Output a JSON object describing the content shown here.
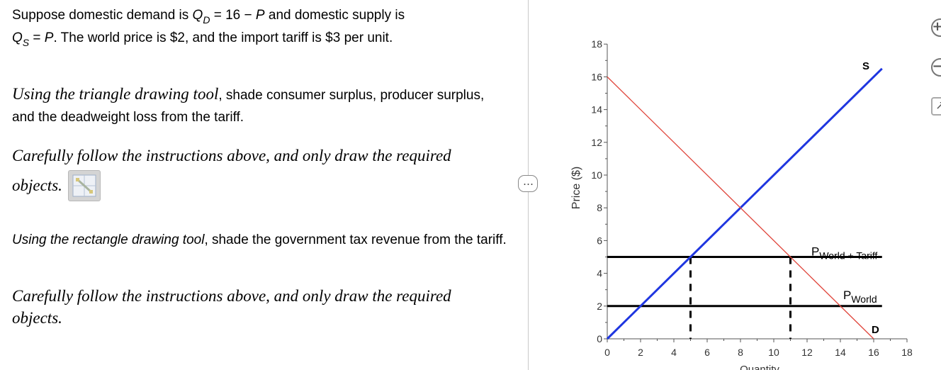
{
  "question": {
    "line1_pre": "Suppose domestic demand is ",
    "qd_q": "Q",
    "qd_sub": "D",
    "line1_mid": " = 16  −  ",
    "line1_p": "P",
    "line1_post": " and domestic supply is",
    "qs_q": "Q",
    "qs_sub": "S",
    "line2_eq": " =  ",
    "line2_p": "P",
    "line2_post": ". The world price is $2, and the import tariff is $3 per unit."
  },
  "instruction1": {
    "italic": "Using the triangle drawing tool",
    "rest": ", shade consumer surplus, producer surplus, and the deadweight loss from the tariff."
  },
  "careful1": {
    "line1": "Carefully follow the instructions above, and only draw the required",
    "line2": "objects."
  },
  "instruction2": {
    "italic": "Using the rectangle drawing tool",
    "rest": ", shade the government tax revenue from the tariff."
  },
  "careful2": {
    "line1": "Carefully follow the instructions above, and only draw the required",
    "line2": "objects."
  },
  "panel_handle": "…",
  "side_buttons": {
    "zoom_in": "+",
    "zoom_out": "−",
    "expand": "↗"
  },
  "chart_data": {
    "type": "line",
    "xlabel": "Quantity",
    "ylabel": "Price ($)",
    "xlim": [
      0,
      18
    ],
    "ylim": [
      0,
      18
    ],
    "xticks": [
      0,
      2,
      4,
      6,
      8,
      10,
      12,
      14,
      16,
      18
    ],
    "yticks": [
      0,
      2,
      4,
      6,
      8,
      10,
      12,
      14,
      16,
      18
    ],
    "series": [
      {
        "name": "S",
        "color": "#1f36e0",
        "x": [
          0,
          16.5
        ],
        "y": [
          0,
          16.5
        ]
      },
      {
        "name": "D",
        "color": "#e0463c",
        "x": [
          0,
          16
        ],
        "y": [
          16,
          0
        ]
      }
    ],
    "hlines": [
      {
        "y": 5,
        "x_end": 16.5,
        "label": "P",
        "label_sub": "World + Tariff"
      },
      {
        "y": 2,
        "x_end": 16.5,
        "label": "P",
        "label_sub": "World"
      }
    ],
    "vlines_dashed": [
      {
        "x": 5,
        "y_top": 5
      },
      {
        "x": 11,
        "y_top": 5
      }
    ],
    "supply_label": "S",
    "demand_label": "D"
  }
}
